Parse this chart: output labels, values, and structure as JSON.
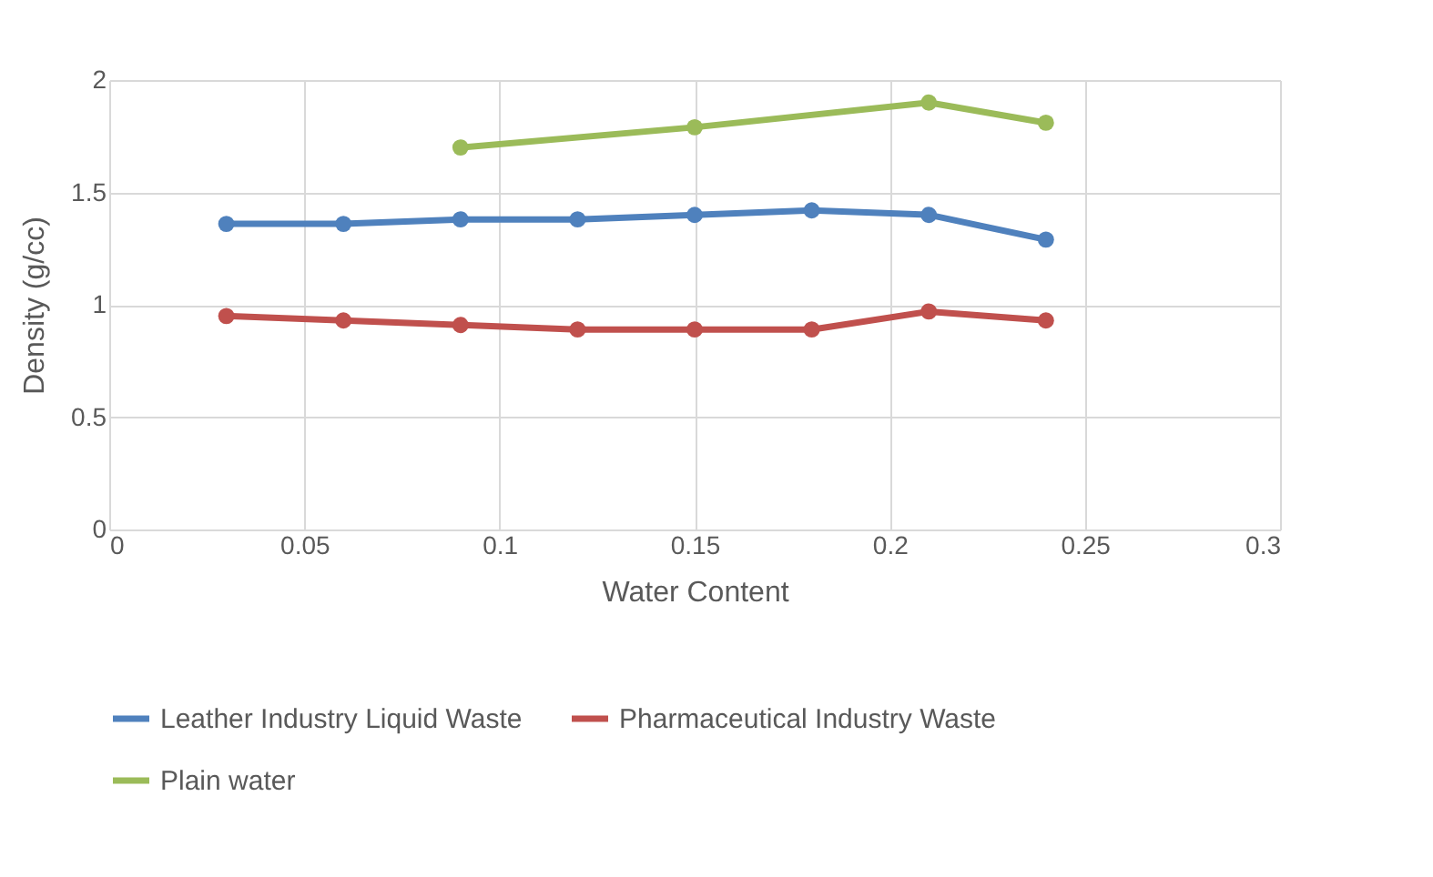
{
  "chart_data": {
    "type": "line",
    "xlabel": "Water Content",
    "ylabel": "Density  (g/cc)",
    "x": [
      0.03,
      0.06,
      0.09,
      0.12,
      0.15,
      0.18,
      0.21,
      0.24
    ],
    "series": [
      {
        "name": "Leather Industry Liquid Waste",
        "color": "#4f81bd",
        "values": [
          1.36,
          1.36,
          1.38,
          1.38,
          1.4,
          1.42,
          1.4,
          1.29
        ]
      },
      {
        "name": "Pharmaceutical Industry Waste",
        "color": "#c0504d",
        "values": [
          0.95,
          0.93,
          0.91,
          0.89,
          0.89,
          0.89,
          0.97,
          0.93
        ]
      },
      {
        "name": "Plain water",
        "color": "#9bbb59",
        "x": [
          0.09,
          0.15,
          0.21,
          0.24
        ],
        "values": [
          1.7,
          1.79,
          1.9,
          1.81
        ]
      }
    ],
    "xlim": [
      0,
      0.3
    ],
    "xticks": [
      0,
      0.05,
      0.1,
      0.15,
      0.2,
      0.25,
      0.3
    ],
    "ylim": [
      0,
      2
    ],
    "yticks": [
      0,
      0.5,
      1,
      1.5,
      2
    ],
    "grid": true,
    "legend": "bottom",
    "marker": "circle",
    "line_style": "solid"
  }
}
